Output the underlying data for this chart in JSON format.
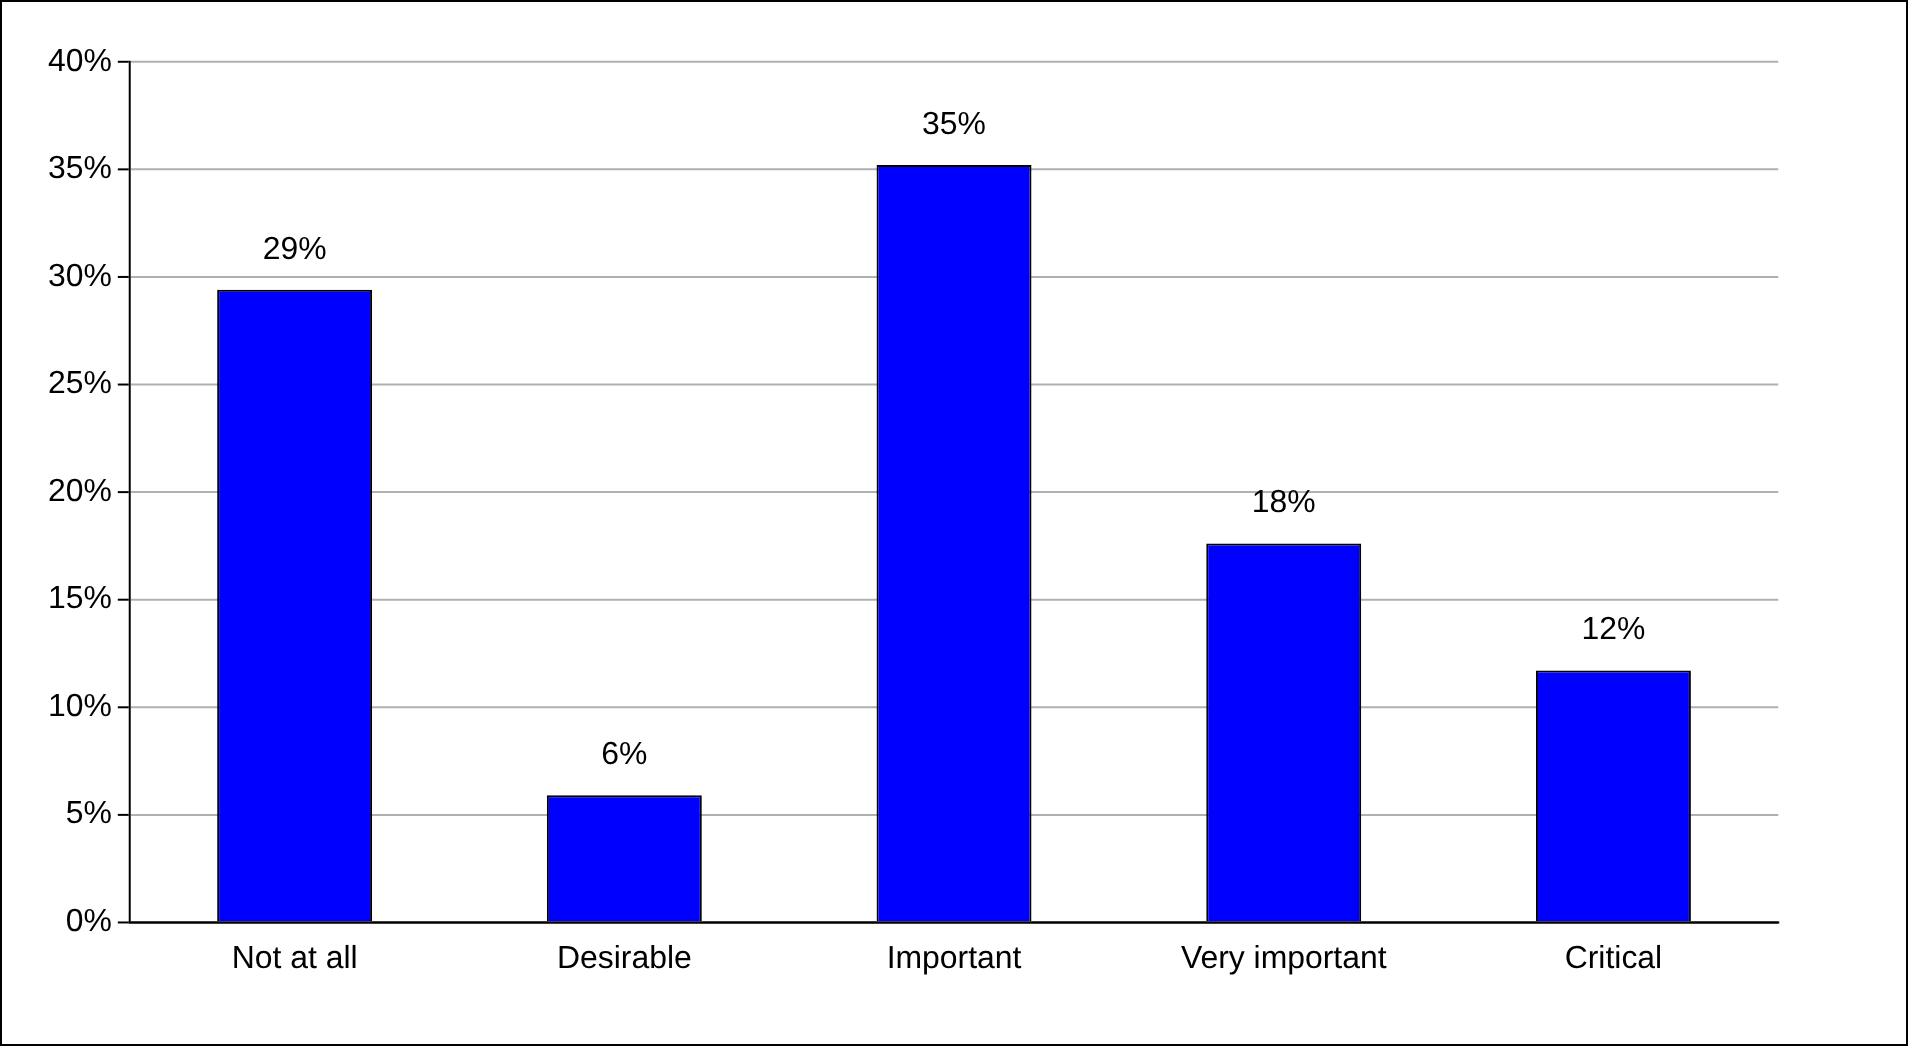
{
  "chart_data": {
    "type": "bar",
    "categories": [
      "Not at all",
      "Desirable",
      "Important",
      "Very important",
      "Critical"
    ],
    "values": [
      29.4,
      5.9,
      35.2,
      17.6,
      11.7
    ],
    "value_labels": [
      "29%",
      "6%",
      "35%",
      "18%",
      "12%"
    ],
    "color": "#0000ff",
    "ylim": [
      0,
      40
    ],
    "yticks": [
      {
        "value": 0,
        "label": "0%"
      },
      {
        "value": 5,
        "label": "5%"
      },
      {
        "value": 10,
        "label": "10%"
      },
      {
        "value": 15,
        "label": "15%"
      },
      {
        "value": 20,
        "label": "20%"
      },
      {
        "value": 25,
        "label": "25%"
      },
      {
        "value": 30,
        "label": "30%"
      },
      {
        "value": 35,
        "label": "35%"
      },
      {
        "value": 40,
        "label": "40%"
      }
    ],
    "grid": "y"
  }
}
